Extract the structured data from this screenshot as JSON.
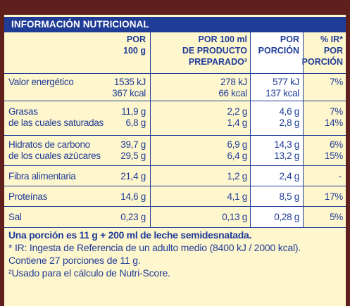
{
  "title": "INFORMACIÓN NUTRICIONAL",
  "headers": {
    "per100_a": "POR",
    "per100_b": "100 g",
    "prepared_a": "POR 100 ml",
    "prepared_b": "DE PRODUCTO",
    "prepared_c": "PREPARADO²",
    "portion_a": "POR",
    "portion_b": "PORCIÓN",
    "ir_a": "% IR*",
    "ir_b": "POR",
    "ir_c": "PORCIÓN"
  },
  "rows": [
    {
      "label": "Valor energético",
      "per100": "1535 kJ",
      "prepared": "278 kJ",
      "portion": "577 kJ",
      "ir": "7%"
    },
    {
      "label": "",
      "per100": "367 kcal",
      "prepared": "66 kcal",
      "portion": "137 kcal",
      "ir": ""
    },
    {
      "label": "Grasas",
      "per100": "11,9 g",
      "prepared": "2,2 g",
      "portion": "4,6 g",
      "ir": "7%"
    },
    {
      "label": "de las cuales saturadas",
      "per100": "6,8 g",
      "prepared": "1,4 g",
      "portion": "2,8 g",
      "ir": "14%"
    },
    {
      "label": "Hidratos de carbono",
      "per100": "39,7 g",
      "prepared": "6,9 g",
      "portion": "14,3 g",
      "ir": "6%"
    },
    {
      "label": "de los cuales azúcares",
      "per100": "29,5 g",
      "prepared": "6,4 g",
      "portion": "13,2 g",
      "ir": "15%"
    },
    {
      "label": "Fibra alimentaria",
      "per100": "21,4 g",
      "prepared": "1,2 g",
      "portion": "2,4 g",
      "ir": "-"
    },
    {
      "label": "Proteínas",
      "per100": "14,6 g",
      "prepared": "4,1 g",
      "portion": "8,5 g",
      "ir": "17%"
    },
    {
      "label": "Sal",
      "per100": "0,23 g",
      "prepared": "0,13 g",
      "portion": "0,28 g",
      "ir": "5%"
    }
  ],
  "footnotes": {
    "portion": "Una porción es 11 g + 200 ml de leche semidesnatada.",
    "ir": "* IR: Ingesta de Referencia de un adulto medio (8400 kJ / 2000 kcal).",
    "servings": "Contiene 27 porciones de 11 g.",
    "nutriscore": "²Usado para el cálculo de Nutri-Score."
  },
  "colors": {
    "text": "#1f3c97",
    "panel": "#fef6cd",
    "border": "#5e1f1d",
    "highlight": "#ffffff"
  }
}
